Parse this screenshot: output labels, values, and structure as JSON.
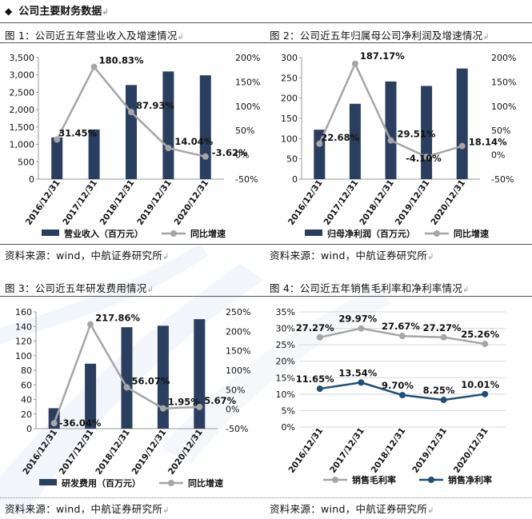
{
  "header": {
    "icon": "diamond-bullet-icon",
    "title": "公司主要财务数据"
  },
  "return_mark": "↲",
  "colors": {
    "bar": "#2a3f5f",
    "line": "#a6a6a6",
    "line_dark": "#1f4e79",
    "marker_light": "#a6a6a6",
    "marker_dark": "#1f4e79"
  },
  "chart_data": [
    {
      "id": "fig1",
      "type": "bar+line",
      "title": "图 1：公司近五年营业收入及增速情况",
      "categories": [
        "2016/12/31",
        "2017/12/31",
        "2018/12/31",
        "2019/12/31",
        "2020/12/31"
      ],
      "series": [
        {
          "name": "营业收入（百万元）",
          "kind": "bar",
          "axis": "left",
          "values": [
            1200,
            1430,
            2710,
            3100,
            2990
          ]
        },
        {
          "name": "同比增速",
          "kind": "line",
          "axis": "right",
          "values": [
            31.45,
            180.83,
            87.93,
            14.04,
            -3.62
          ],
          "labels": [
            "31.45%",
            "180.83%",
            "87.93%",
            "14.04%",
            "-3.62%"
          ]
        }
      ],
      "left_axis": {
        "min": 0,
        "max": 3500,
        "ticks": [
          0,
          500,
          1000,
          1500,
          2000,
          2500,
          3000,
          3500
        ],
        "tick_labels": [
          "0",
          "500",
          "1,000",
          "1,500",
          "2,000",
          "2,500",
          "3,000",
          "3,500"
        ]
      },
      "right_axis": {
        "min": -50,
        "max": 200,
        "ticks": [
          -50,
          0,
          50,
          100,
          150,
          200
        ],
        "tick_labels": [
          "-50%",
          "0%",
          "50%",
          "100%",
          "150%",
          "200%"
        ]
      },
      "source": "资料来源：wind，中航证券研究所"
    },
    {
      "id": "fig2",
      "type": "bar+line",
      "title": "图 2：公司近五年归属母公司净利润及增速情况",
      "categories": [
        "2016/12/31",
        "2017/12/31",
        "2018/12/31",
        "2019/12/31",
        "2020/12/31"
      ],
      "series": [
        {
          "name": "归母净利润（百万元）",
          "kind": "bar",
          "axis": "left",
          "values": [
            122,
            186,
            241,
            230,
            273
          ]
        },
        {
          "name": "同比增速",
          "kind": "line",
          "axis": "right",
          "values": [
            22.68,
            187.17,
            29.51,
            -4.1,
            18.14
          ],
          "labels": [
            "22.68%",
            "187.17%",
            "29.51%",
            "-4.10%",
            "18.14%"
          ]
        }
      ],
      "left_axis": {
        "min": 0,
        "max": 300,
        "ticks": [
          0,
          50,
          100,
          150,
          200,
          250,
          300
        ],
        "tick_labels": [
          "0",
          "50",
          "100",
          "150",
          "200",
          "250",
          "300"
        ]
      },
      "right_axis": {
        "min": -50,
        "max": 200,
        "ticks": [
          -50,
          0,
          50,
          100,
          150,
          200
        ],
        "tick_labels": [
          "-50%",
          "0%",
          "50%",
          "100%",
          "150%",
          "200%"
        ]
      },
      "source": "资料来源：wind，中航证券研究所"
    },
    {
      "id": "fig3",
      "type": "bar+line",
      "title": "图 3：公司近五年研发费用情况",
      "categories": [
        "2016/12/31",
        "2017/12/31",
        "2018/12/31",
        "2019/12/31",
        "2020/12/31"
      ],
      "series": [
        {
          "name": "研发费用（百万元）",
          "kind": "bar",
          "axis": "left",
          "values": [
            28,
            89,
            139,
            141,
            150
          ]
        },
        {
          "name": "同比增速",
          "kind": "line",
          "axis": "right",
          "values": [
            -36.04,
            217.86,
            56.07,
            1.95,
            5.67
          ],
          "labels": [
            "-36.04%",
            "217.86%",
            "56.07%",
            "1.95%",
            "5.67%"
          ]
        }
      ],
      "left_axis": {
        "min": 0,
        "max": 160,
        "ticks": [
          0,
          20,
          40,
          60,
          80,
          100,
          120,
          140,
          160
        ],
        "tick_labels": [
          "0",
          "20",
          "40",
          "60",
          "80",
          "100",
          "120",
          "140",
          "160"
        ]
      },
      "right_axis": {
        "min": -50,
        "max": 250,
        "ticks": [
          -50,
          0,
          50,
          100,
          150,
          200,
          250
        ],
        "tick_labels": [
          "-50%",
          "0%",
          "50%",
          "100%",
          "150%",
          "200%",
          "250%"
        ]
      },
      "source": "资料来源：wind，中航证券研究所"
    },
    {
      "id": "fig4",
      "type": "line",
      "title": "图 4：公司近五年销售毛利率和净利率情况",
      "categories": [
        "2016/12/31",
        "2017/12/31",
        "2018/12/31",
        "2019/12/31",
        "2020/12/31"
      ],
      "series": [
        {
          "name": "销售毛利率",
          "kind": "line",
          "values": [
            27.27,
            29.97,
            27.67,
            27.27,
            25.26
          ],
          "labels": [
            "27.27%",
            "29.97%",
            "27.67%",
            "27.27%",
            "25.26%"
          ]
        },
        {
          "name": "销售净利率",
          "kind": "line",
          "values": [
            11.65,
            13.54,
            9.7,
            8.25,
            10.01
          ],
          "labels": [
            "11.65%",
            "13.54%",
            "9.70%",
            "8.25%",
            "10.01%"
          ]
        }
      ],
      "left_axis": {
        "min": 0,
        "max": 35,
        "ticks": [
          0,
          5,
          10,
          15,
          20,
          25,
          30,
          35
        ],
        "tick_labels": [
          "0%",
          "5%",
          "10%",
          "15%",
          "20%",
          "25%",
          "30%",
          "35%"
        ]
      },
      "source": "资料来源：wind，中航证券研究所"
    }
  ]
}
